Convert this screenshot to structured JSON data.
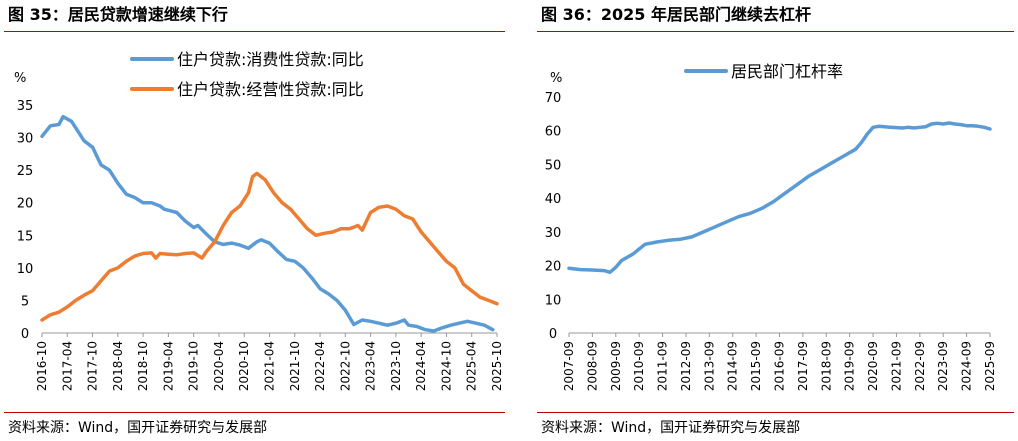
{
  "left_panel": {
    "title": "图 35：居民贷款增速继续下行",
    "source": "资料来源：Wind，国开证券研究与发展部"
  },
  "right_panel": {
    "title": "图 36：2025 年居民部门继续去杠杆",
    "source": "资料来源：Wind，国开证券研究与发展部"
  },
  "colors": {
    "blue": "#5b9bd5",
    "orange": "#ed7d31",
    "rule": "#c00000"
  },
  "chart_data": [
    {
      "type": "line",
      "ylabel": "%",
      "ylim": [
        0,
        35
      ],
      "yticks": [
        0,
        5,
        10,
        15,
        20,
        25,
        30,
        35
      ],
      "x_start": "2016-10",
      "x_end": "2025-10",
      "xticks": [
        "2016-10",
        "2017-04",
        "2017-10",
        "2018-04",
        "2018-10",
        "2019-04",
        "2019-10",
        "2020-04",
        "2020-10",
        "2021-04",
        "2021-10",
        "2022-04",
        "2022-10",
        "2023-04",
        "2023-10",
        "2024-04",
        "2024-10",
        "2025-04",
        "2025-10"
      ],
      "legend_position": "top-center",
      "grid": false,
      "series": [
        {
          "name": "住户贷款:消费性贷款:同比",
          "color": "#5b9bd5",
          "points": [
            [
              "2016-10",
              30.2
            ],
            [
              "2016-12",
              31.8
            ],
            [
              "2017-02",
              32.0
            ],
            [
              "2017-03",
              33.2
            ],
            [
              "2017-05",
              32.5
            ],
            [
              "2017-06",
              31.5
            ],
            [
              "2017-08",
              29.5
            ],
            [
              "2017-10",
              28.5
            ],
            [
              "2017-12",
              25.8
            ],
            [
              "2018-02",
              25.0
            ],
            [
              "2018-04",
              23.0
            ],
            [
              "2018-06",
              21.3
            ],
            [
              "2018-08",
              20.8
            ],
            [
              "2018-10",
              20.0
            ],
            [
              "2018-12",
              20.0
            ],
            [
              "2019-02",
              19.5
            ],
            [
              "2019-03",
              19.0
            ],
            [
              "2019-06",
              18.5
            ],
            [
              "2019-08",
              17.2
            ],
            [
              "2019-10",
              16.2
            ],
            [
              "2019-11",
              16.5
            ],
            [
              "2020-01",
              15.2
            ],
            [
              "2020-03",
              14.0
            ],
            [
              "2020-05",
              13.6
            ],
            [
              "2020-07",
              13.8
            ],
            [
              "2020-09",
              13.5
            ],
            [
              "2020-11",
              13.0
            ],
            [
              "2021-01",
              14.0
            ],
            [
              "2021-02",
              14.3
            ],
            [
              "2021-04",
              13.8
            ],
            [
              "2021-06",
              12.5
            ],
            [
              "2021-08",
              11.3
            ],
            [
              "2021-10",
              11.0
            ],
            [
              "2021-12",
              10.0
            ],
            [
              "2022-02",
              8.5
            ],
            [
              "2022-04",
              6.8
            ],
            [
              "2022-06",
              6.0
            ],
            [
              "2022-08",
              5.0
            ],
            [
              "2022-10",
              3.5
            ],
            [
              "2022-12",
              1.3
            ],
            [
              "2023-02",
              2.0
            ],
            [
              "2023-04",
              1.8
            ],
            [
              "2023-06",
              1.5
            ],
            [
              "2023-08",
              1.2
            ],
            [
              "2023-10",
              1.5
            ],
            [
              "2023-12",
              2.0
            ],
            [
              "2024-01",
              1.2
            ],
            [
              "2024-03",
              1.0
            ],
            [
              "2024-05",
              0.5
            ],
            [
              "2024-07",
              0.3
            ],
            [
              "2024-09",
              0.8
            ],
            [
              "2024-11",
              1.2
            ],
            [
              "2025-01",
              1.5
            ],
            [
              "2025-03",
              1.8
            ],
            [
              "2025-05",
              1.5
            ],
            [
              "2025-07",
              1.2
            ],
            [
              "2025-09",
              0.5
            ]
          ]
        },
        {
          "name": "住户贷款:经营性贷款:同比",
          "color": "#ed7d31",
          "points": [
            [
              "2016-10",
              2.0
            ],
            [
              "2016-12",
              2.8
            ],
            [
              "2017-02",
              3.2
            ],
            [
              "2017-04",
              4.0
            ],
            [
              "2017-06",
              5.0
            ],
            [
              "2017-08",
              5.8
            ],
            [
              "2017-10",
              6.5
            ],
            [
              "2017-12",
              8.0
            ],
            [
              "2018-02",
              9.5
            ],
            [
              "2018-04",
              10.0
            ],
            [
              "2018-06",
              11.0
            ],
            [
              "2018-08",
              11.8
            ],
            [
              "2018-10",
              12.2
            ],
            [
              "2018-12",
              12.3
            ],
            [
              "2019-01",
              11.5
            ],
            [
              "2019-02",
              12.2
            ],
            [
              "2019-04",
              12.1
            ],
            [
              "2019-06",
              12.0
            ],
            [
              "2019-08",
              12.2
            ],
            [
              "2019-10",
              12.3
            ],
            [
              "2019-12",
              11.5
            ],
            [
              "2020-01",
              12.5
            ],
            [
              "2020-03",
              14.0
            ],
            [
              "2020-05",
              16.5
            ],
            [
              "2020-07",
              18.5
            ],
            [
              "2020-09",
              19.5
            ],
            [
              "2020-11",
              21.5
            ],
            [
              "2020-12",
              24.0
            ],
            [
              "2021-01",
              24.5
            ],
            [
              "2021-03",
              23.5
            ],
            [
              "2021-05",
              21.5
            ],
            [
              "2021-07",
              20.0
            ],
            [
              "2021-09",
              19.0
            ],
            [
              "2021-11",
              17.5
            ],
            [
              "2022-01",
              16.0
            ],
            [
              "2022-03",
              15.0
            ],
            [
              "2022-05",
              15.3
            ],
            [
              "2022-07",
              15.5
            ],
            [
              "2022-09",
              16.0
            ],
            [
              "2022-11",
              16.0
            ],
            [
              "2023-01",
              16.5
            ],
            [
              "2023-02",
              15.8
            ],
            [
              "2023-04",
              18.5
            ],
            [
              "2023-06",
              19.3
            ],
            [
              "2023-08",
              19.5
            ],
            [
              "2023-10",
              19.0
            ],
            [
              "2023-12",
              18.0
            ],
            [
              "2024-02",
              17.5
            ],
            [
              "2024-04",
              15.5
            ],
            [
              "2024-06",
              14.0
            ],
            [
              "2024-08",
              12.5
            ],
            [
              "2024-10",
              11.0
            ],
            [
              "2024-12",
              10.0
            ],
            [
              "2025-02",
              7.5
            ],
            [
              "2025-04",
              6.5
            ],
            [
              "2025-06",
              5.5
            ],
            [
              "2025-08",
              5.0
            ],
            [
              "2025-10",
              4.5
            ]
          ]
        }
      ]
    },
    {
      "type": "line",
      "ylabel": "%",
      "ylim": [
        0,
        70
      ],
      "yticks": [
        0,
        10,
        20,
        30,
        40,
        50,
        60,
        70
      ],
      "x_start": "2007-09",
      "x_end": "2025-09",
      "xticks": [
        "2007-09",
        "2008-09",
        "2009-09",
        "2010-09",
        "2011-09",
        "2012-09",
        "2013-09",
        "2014-09",
        "2015-09",
        "2016-09",
        "2017-09",
        "2018-09",
        "2019-09",
        "2020-09",
        "2021-09",
        "2022-09",
        "2023-09",
        "2024-09",
        "2025-09"
      ],
      "legend_position": "top-center",
      "grid": false,
      "series": [
        {
          "name": "居民部门杠杆率",
          "color": "#5b9bd5",
          "points": [
            [
              "2007-09",
              19.2
            ],
            [
              "2008-03",
              18.8
            ],
            [
              "2008-09",
              18.7
            ],
            [
              "2009-03",
              18.5
            ],
            [
              "2009-06",
              18.0
            ],
            [
              "2009-09",
              19.5
            ],
            [
              "2009-12",
              21.5
            ],
            [
              "2010-06",
              23.5
            ],
            [
              "2010-12",
              26.3
            ],
            [
              "2011-06",
              27.0
            ],
            [
              "2011-12",
              27.5
            ],
            [
              "2012-06",
              27.8
            ],
            [
              "2012-12",
              28.5
            ],
            [
              "2013-06",
              30.0
            ],
            [
              "2013-12",
              31.5
            ],
            [
              "2014-06",
              33.0
            ],
            [
              "2014-12",
              34.5
            ],
            [
              "2015-06",
              35.5
            ],
            [
              "2015-12",
              37.0
            ],
            [
              "2016-06",
              39.0
            ],
            [
              "2016-12",
              41.5
            ],
            [
              "2017-06",
              44.0
            ],
            [
              "2017-12",
              46.5
            ],
            [
              "2018-06",
              48.5
            ],
            [
              "2018-12",
              50.5
            ],
            [
              "2019-06",
              52.5
            ],
            [
              "2019-12",
              54.5
            ],
            [
              "2020-03",
              56.5
            ],
            [
              "2020-06",
              59.0
            ],
            [
              "2020-09",
              61.0
            ],
            [
              "2020-12",
              61.3
            ],
            [
              "2021-06",
              61.0
            ],
            [
              "2021-12",
              60.8
            ],
            [
              "2022-03",
              61.0
            ],
            [
              "2022-06",
              60.8
            ],
            [
              "2022-09",
              61.0
            ],
            [
              "2022-12",
              61.2
            ],
            [
              "2023-03",
              62.0
            ],
            [
              "2023-06",
              62.2
            ],
            [
              "2023-09",
              62.0
            ],
            [
              "2023-12",
              62.3
            ],
            [
              "2024-03",
              62.0
            ],
            [
              "2024-06",
              61.8
            ],
            [
              "2024-09",
              61.5
            ],
            [
              "2024-12",
              61.5
            ],
            [
              "2025-03",
              61.3
            ],
            [
              "2025-06",
              61.0
            ],
            [
              "2025-09",
              60.5
            ]
          ]
        }
      ]
    }
  ]
}
